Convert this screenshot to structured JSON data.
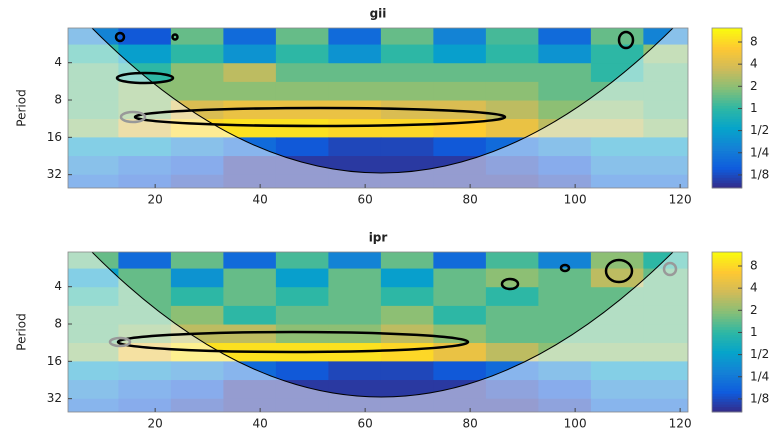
{
  "chart_data": [
    {
      "type": "heatmap",
      "title": "gii",
      "ylabel": "Period",
      "x": [
        8,
        18,
        28,
        38,
        48,
        58,
        68,
        78,
        88,
        98,
        108,
        118
      ],
      "y": [
        2.4,
        3.4,
        4.8,
        6.8,
        9.6,
        13.5,
        19,
        27,
        38
      ],
      "values": [
        [
          0.3,
          0.15,
          1.5,
          0.2,
          1.5,
          0.2,
          1.5,
          0.3,
          1.2,
          0.2,
          1.5,
          0.3
        ],
        [
          1,
          0.5,
          1,
          0.4,
          1,
          0.4,
          1,
          0.5,
          1,
          0.4,
          1,
          2
        ],
        [
          1.5,
          1,
          2,
          3,
          1.5,
          1.5,
          1.5,
          1.5,
          1.5,
          1.5,
          1,
          1.5
        ],
        [
          1.5,
          2,
          2,
          2,
          2,
          2,
          2,
          2,
          2,
          1.5,
          1.5,
          1.5
        ],
        [
          1.5,
          2,
          4,
          5,
          5,
          5,
          4,
          4,
          3,
          2,
          2,
          1.5
        ],
        [
          2,
          4,
          8,
          9,
          9,
          8,
          8,
          7,
          5,
          3,
          3,
          2
        ],
        [
          0.5,
          0.5,
          0.3,
          0.2,
          0.15,
          0.12,
          0.12,
          0.15,
          0.2,
          0.3,
          0.5,
          0.5
        ],
        [
          0.3,
          0.2,
          0.15,
          0.1,
          0.1,
          0.1,
          0.1,
          0.1,
          0.12,
          0.15,
          0.3,
          0.3
        ],
        [
          0.2,
          0.15,
          0.12,
          0.1,
          0.1,
          0.1,
          0.1,
          0.1,
          0.1,
          0.12,
          0.2,
          0.2
        ]
      ],
      "xlim": [
        3.4,
        121.5
      ],
      "xticks": [
        20,
        40,
        60,
        80,
        100,
        120
      ],
      "ylim": [
        2.1,
        41
      ],
      "ylog": true,
      "yreverse": true,
      "yticks": [
        4,
        8,
        16,
        32
      ],
      "clim": [
        0.083,
        12.4
      ],
      "clog": true,
      "cticks": [
        {
          "value": 8,
          "label": "8"
        },
        {
          "value": 4,
          "label": "4"
        },
        {
          "value": 2,
          "label": "2"
        },
        {
          "value": 1,
          "label": "1"
        },
        {
          "value": 0.5,
          "label": "1/2"
        },
        {
          "value": 0.25,
          "label": "1/4"
        },
        {
          "value": 0.125,
          "label": "1/8"
        }
      ],
      "colormap": [
        "#352a87",
        "#0f5cdd",
        "#1481d6",
        "#06a4ca",
        "#2eb7a4",
        "#87bf77",
        "#d1bb59",
        "#fec832",
        "#f9fb0e"
      ]
    },
    {
      "type": "heatmap",
      "title": "ipr",
      "ylabel": "Period",
      "x": [
        8,
        18,
        28,
        38,
        48,
        58,
        68,
        78,
        88,
        98,
        108,
        118
      ],
      "y": [
        2.4,
        3.4,
        4.8,
        6.8,
        9.6,
        13.5,
        19,
        27,
        38
      ],
      "values": [
        [
          1.5,
          0.2,
          1.5,
          0.2,
          1.2,
          0.3,
          1.5,
          0.2,
          1.2,
          0.3,
          2,
          1
        ],
        [
          0.5,
          1.5,
          0.4,
          1.5,
          0.5,
          1.5,
          0.5,
          1.5,
          2,
          1.5,
          3,
          1.5
        ],
        [
          1,
          1.5,
          1,
          1.5,
          1,
          1.5,
          1,
          1.5,
          1,
          1.5,
          1.5,
          1.5
        ],
        [
          1.5,
          1.5,
          2,
          1,
          1.5,
          1.5,
          2,
          1,
          1.5,
          1.5,
          1.5,
          1.5
        ],
        [
          1.5,
          2,
          3,
          3,
          2,
          2,
          3,
          2,
          1.5,
          1.5,
          1.5,
          1.5
        ],
        [
          2,
          5,
          9,
          9,
          9,
          9,
          8,
          5,
          3,
          2,
          2,
          2
        ],
        [
          0.5,
          0.4,
          0.3,
          0.2,
          0.15,
          0.12,
          0.12,
          0.15,
          0.2,
          0.3,
          0.5,
          0.5
        ],
        [
          0.3,
          0.2,
          0.15,
          0.1,
          0.1,
          0.1,
          0.1,
          0.1,
          0.12,
          0.15,
          0.3,
          0.3
        ],
        [
          0.2,
          0.15,
          0.12,
          0.1,
          0.1,
          0.1,
          0.1,
          0.1,
          0.1,
          0.12,
          0.2,
          0.2
        ]
      ],
      "xlim": [
        3.4,
        121.5
      ],
      "xticks": [
        20,
        40,
        60,
        80,
        100,
        120
      ],
      "ylim": [
        2.1,
        41
      ],
      "ylog": true,
      "yreverse": true,
      "yticks": [
        4,
        8,
        16,
        32
      ],
      "clim": [
        0.083,
        12.4
      ],
      "clog": true,
      "cticks": [
        {
          "value": 8,
          "label": "8"
        },
        {
          "value": 4,
          "label": "4"
        },
        {
          "value": 2,
          "label": "2"
        },
        {
          "value": 1,
          "label": "1"
        },
        {
          "value": 0.5,
          "label": "1/2"
        },
        {
          "value": 0.25,
          "label": "1/4"
        },
        {
          "value": 0.125,
          "label": "1/8"
        }
      ],
      "colormap": [
        "#352a87",
        "#0f5cdd",
        "#1481d6",
        "#06a4ca",
        "#2eb7a4",
        "#87bf77",
        "#d1bb59",
        "#fec832",
        "#f9fb0e"
      ]
    }
  ]
}
